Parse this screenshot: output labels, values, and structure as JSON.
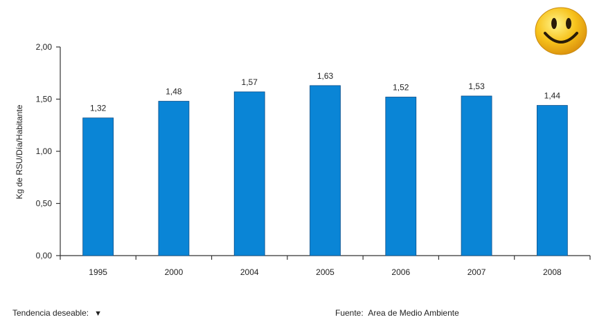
{
  "chart_data": {
    "type": "bar",
    "categories": [
      "1995",
      "2000",
      "2004",
      "2005",
      "2006",
      "2007",
      "2008"
    ],
    "values": [
      1.32,
      1.48,
      1.57,
      1.63,
      1.52,
      1.53,
      1.44
    ],
    "value_labels": [
      "1,32",
      "1,48",
      "1,57",
      "1,63",
      "1,52",
      "1,53",
      "1,44"
    ],
    "ylabel": "Kg de RSU/Día/Habitante",
    "ylim": [
      0,
      2
    ],
    "yticks": [
      0,
      0.5,
      1,
      1.5,
      2
    ],
    "ytick_labels": [
      "0,00",
      "0,50",
      "1,00",
      "1,50",
      "2,00"
    ],
    "grid": false,
    "bar_color": "#0a85d6"
  },
  "footer": {
    "trend_label": "Tendencia deseable:",
    "trend_icon": "▼",
    "source_label": "Fuente:",
    "source_value": "Area de Medio Ambiente"
  },
  "badge": {
    "icon": "smiley-face-icon",
    "color": "#f7c21b"
  }
}
